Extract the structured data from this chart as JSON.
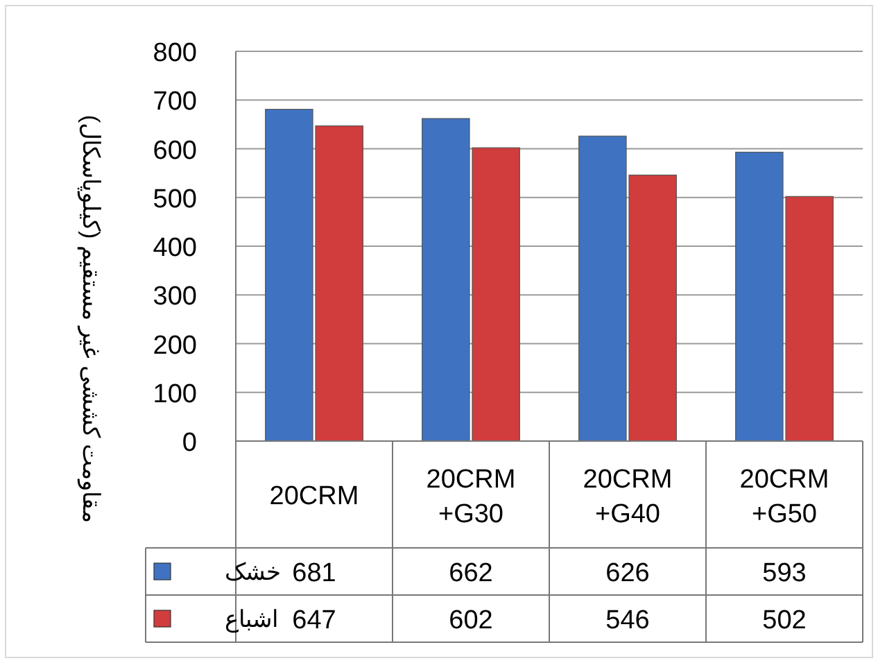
{
  "chart_data": {
    "type": "bar",
    "ylabel": "مقاومت کششی غیر مستقیم (کیلوپاسکال)",
    "categories": [
      "20CRM",
      "20CRM\n+G30",
      "20CRM\n+G40",
      "20CRM\n+G50"
    ],
    "series": [
      {
        "name": "خشک",
        "color": "#3f73c2",
        "values": [
          681,
          662,
          626,
          593
        ]
      },
      {
        "name": "اشباع",
        "color": "#d13c3c",
        "values": [
          647,
          602,
          546,
          502
        ]
      }
    ],
    "ylim": [
      0,
      800
    ],
    "yticks": [
      0,
      100,
      200,
      300,
      400,
      500,
      600,
      700,
      800
    ],
    "grid": "y",
    "legend": "bottom",
    "data_labels": true
  }
}
